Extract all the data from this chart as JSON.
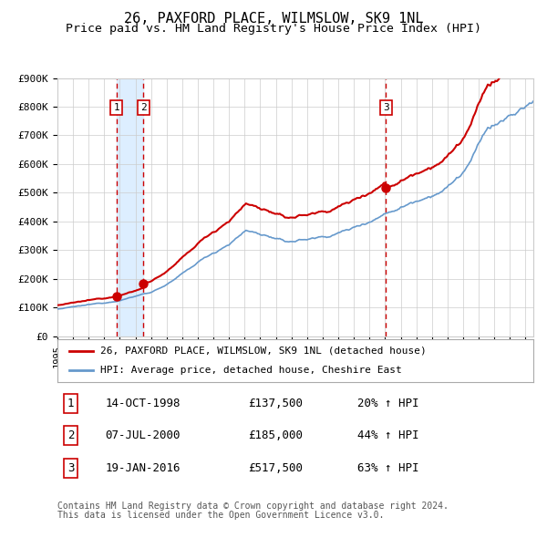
{
  "title": "26, PAXFORD PLACE, WILMSLOW, SK9 1NL",
  "subtitle": "Price paid vs. HM Land Registry's House Price Index (HPI)",
  "ylim": [
    0,
    900000
  ],
  "yticks": [
    0,
    100000,
    200000,
    300000,
    400000,
    500000,
    600000,
    700000,
    800000,
    900000
  ],
  "ytick_labels": [
    "£0",
    "£100K",
    "£200K",
    "£300K",
    "£400K",
    "£500K",
    "£600K",
    "£700K",
    "£800K",
    "£900K"
  ],
  "xlim_start": 1995.0,
  "xlim_end": 2025.5,
  "sale_dates": [
    1998.79,
    2000.52,
    2016.05
  ],
  "sale_prices": [
    137500,
    185000,
    517500
  ],
  "sale_labels": [
    "1",
    "2",
    "3"
  ],
  "hpi_color": "#6699cc",
  "price_color": "#cc0000",
  "shade_color": "#ddeeff",
  "vline_color": "#cc0000",
  "grid_color": "#cccccc",
  "background_color": "#ffffff",
  "legend_line1": "26, PAXFORD PLACE, WILMSLOW, SK9 1NL (detached house)",
  "legend_line2": "HPI: Average price, detached house, Cheshire East",
  "table_entries": [
    {
      "num": "1",
      "date": "14-OCT-1998",
      "price": "£137,500",
      "pct": "20% ↑ HPI"
    },
    {
      "num": "2",
      "date": "07-JUL-2000",
      "price": "£185,000",
      "pct": "44% ↑ HPI"
    },
    {
      "num": "3",
      "date": "19-JAN-2016",
      "price": "£517,500",
      "pct": "63% ↑ HPI"
    }
  ],
  "footnote1": "Contains HM Land Registry data © Crown copyright and database right 2024.",
  "footnote2": "This data is licensed under the Open Government Licence v3.0."
}
